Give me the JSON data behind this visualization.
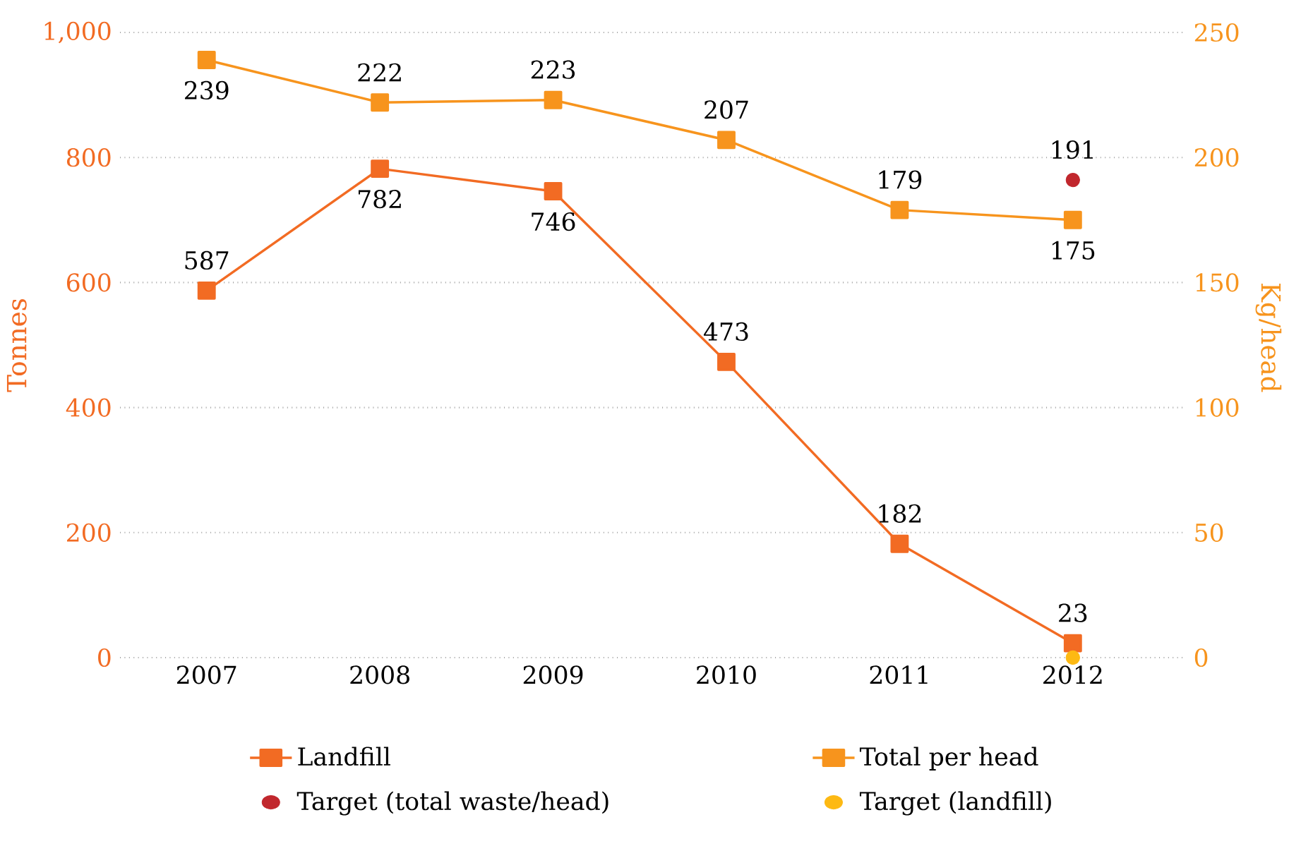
{
  "chart_data": {
    "type": "line",
    "categories": [
      "2007",
      "2008",
      "2009",
      "2010",
      "2011",
      "2012"
    ],
    "ylabel": "Tonnes",
    "y2label": "Kg/head",
    "ylim": [
      0,
      1000
    ],
    "yticks": [
      0,
      200,
      400,
      600,
      800,
      {
        "value": 1000,
        "label": "1,000"
      }
    ],
    "y2lim": [
      0,
      250
    ],
    "y2ticks": [
      0,
      50,
      100,
      150,
      200,
      250
    ],
    "grid": "y",
    "legend": "bottom",
    "line_style": "solid",
    "series": [
      {
        "name": "Landfill",
        "color": "#f26b23",
        "marker": "square",
        "values": [
          587,
          782,
          746,
          473,
          182,
          23
        ],
        "value_labels": [
          "587",
          "782",
          "746",
          "473",
          "182",
          "23"
        ]
      },
      {
        "name": "Total per head",
        "color": "#f7941d",
        "marker": "square",
        "axis": "y2",
        "values": [
          239,
          222,
          223,
          207,
          179,
          175
        ],
        "value_labels": [
          "239",
          "222",
          "223",
          "207",
          "179",
          "175"
        ]
      },
      {
        "name": "Target (total waste/head)",
        "type": "scatter",
        "color": "#c1272d",
        "marker": "circle",
        "axis": "y2",
        "values": [
          null,
          null,
          null,
          null,
          null,
          191
        ],
        "value_labels": [
          null,
          null,
          null,
          null,
          null,
          "191"
        ]
      },
      {
        "name": "Target (landfill)",
        "type": "scatter",
        "color": "#fdb913",
        "marker": "circle",
        "values": [
          null,
          null,
          null,
          null,
          null,
          0
        ],
        "value_labels": [
          null,
          null,
          null,
          null,
          null,
          null
        ]
      }
    ]
  }
}
